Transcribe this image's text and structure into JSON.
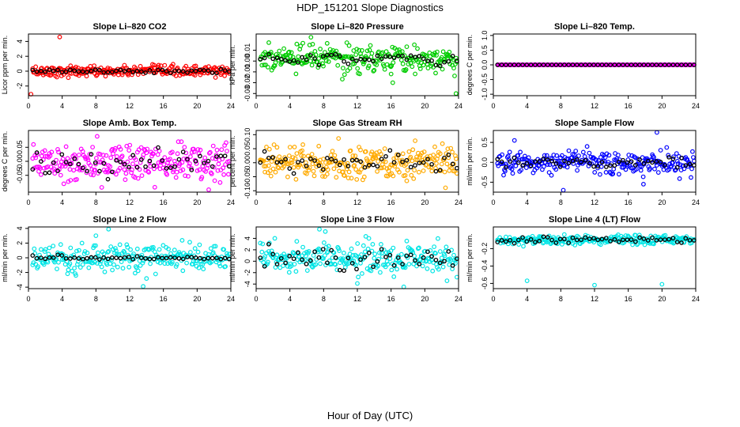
{
  "figure": {
    "title": "HDP_151201  Slope Diagnostics",
    "xlabel": "Hour of Day (UTC)"
  },
  "chart_data": [
    {
      "type": "scatter",
      "title": "Slope Li–820 CO2",
      "ylabel": "Licor ppm per min.",
      "xlim": [
        0,
        24
      ],
      "xticks": [
        "0",
        "4",
        "8",
        "12",
        "16",
        "20",
        "24"
      ],
      "ylim": [
        -3.3,
        5.0
      ],
      "yticks": [
        {
          "v": -2,
          "label": "-2"
        },
        {
          "v": 0,
          "label": "0"
        },
        {
          "v": 2,
          "label": "2"
        },
        {
          "v": 4,
          "label": "4"
        }
      ],
      "color": "#ff0000",
      "center": 0,
      "spread": 0.35,
      "outliers": [
        {
          "x": 3.7,
          "y": 4.6
        },
        {
          "x": 0.3,
          "y": -3.1
        }
      ],
      "mean_spread": 0.15
    },
    {
      "type": "scatter",
      "title": "Slope Li–820 Pressure",
      "ylabel": "kPa per min.",
      "xlim": [
        0,
        24
      ],
      "xticks": [
        "0",
        "4",
        "8",
        "12",
        "16",
        "20",
        "24"
      ],
      "ylim": [
        -0.032,
        0.025
      ],
      "yticks": [
        {
          "v": -0.03,
          "label": "-0.03"
        },
        {
          "v": -0.02,
          "label": "-0.02"
        },
        {
          "v": -0.01,
          "label": "-0.01"
        },
        {
          "v": 0.0,
          "label": "0.00"
        },
        {
          "v": 0.01,
          "label": "0.01"
        }
      ],
      "color": "#00cc00",
      "center": 0.002,
      "spread": 0.006,
      "outliers": [
        {
          "x": 6.5,
          "y": 0.022
        },
        {
          "x": 1.5,
          "y": 0.017
        },
        {
          "x": 16.2,
          "y": -0.02
        },
        {
          "x": 23.7,
          "y": -0.03
        },
        {
          "x": 16.0,
          "y": -0.012
        }
      ],
      "mean_spread": 0.003
    },
    {
      "type": "scatter",
      "title": "Slope Li–820 Temp.",
      "ylabel": "degrees C per min.",
      "xlim": [
        0,
        24
      ],
      "xticks": [
        "0",
        "4",
        "8",
        "12",
        "16",
        "20",
        "24"
      ],
      "ylim": [
        -1.05,
        1.05
      ],
      "yticks": [
        {
          "v": -1,
          "label": "-1.0"
        },
        {
          "v": -0.5,
          "label": "-0.5"
        },
        {
          "v": 0,
          "label": "0.0"
        },
        {
          "v": 0.5,
          "label": "0.5"
        },
        {
          "v": 1,
          "label": "1.0"
        }
      ],
      "color": "#ff00ff",
      "center": 0,
      "spread": 0.0,
      "outliers": [],
      "mean_spread": 0.0
    },
    {
      "type": "scatter",
      "title": "Slope Amb. Box Temp.",
      "ylabel": "degrees C per min.",
      "xlim": [
        0,
        24
      ],
      "xticks": [
        "0",
        "4",
        "8",
        "12",
        "16",
        "20",
        "24"
      ],
      "ylim": [
        -0.11,
        0.11
      ],
      "yticks": [
        {
          "v": -0.05,
          "label": "-0.05"
        },
        {
          "v": 0.0,
          "label": "0.00"
        },
        {
          "v": 0.05,
          "label": "0.05"
        }
      ],
      "color": "#ff00ff",
      "center": 0,
      "spread": 0.035,
      "outliers": [],
      "mean_spread": 0.02
    },
    {
      "type": "scatter",
      "title": "Slope Gas Stream RH",
      "ylabel": "percent per min.",
      "xlim": [
        0,
        24
      ],
      "xticks": [
        "0",
        "4",
        "8",
        "12",
        "16",
        "20",
        "24"
      ],
      "ylim": [
        -0.105,
        0.115
      ],
      "yticks": [
        {
          "v": -0.1,
          "label": "-0.10"
        },
        {
          "v": -0.05,
          "label": "-0.05"
        },
        {
          "v": 0.0,
          "label": "0.00"
        },
        {
          "v": 0.05,
          "label": "0.05"
        },
        {
          "v": 0.1,
          "label": "0.10"
        }
      ],
      "color": "#ffaa00",
      "center": 0,
      "spread": 0.03,
      "outliers": [],
      "mean_spread": 0.02
    },
    {
      "type": "scatter",
      "title": "Slope Sample Flow",
      "ylabel": "ml/min per min.",
      "xlim": [
        0,
        24
      ],
      "xticks": [
        "0",
        "4",
        "8",
        "12",
        "16",
        "20",
        "24"
      ],
      "ylim": [
        -0.75,
        0.8
      ],
      "yticks": [
        {
          "v": -0.5,
          "label": "-0.5"
        },
        {
          "v": 0.0,
          "label": "0.0"
        },
        {
          "v": 0.5,
          "label": "0.5"
        }
      ],
      "color": "#0000ff",
      "center": 0,
      "spread": 0.14,
      "outliers": [
        {
          "x": 8.3,
          "y": -0.7
        },
        {
          "x": 19.4,
          "y": 0.75
        },
        {
          "x": 2.5,
          "y": 0.55
        },
        {
          "x": 17.8,
          "y": -0.55
        }
      ],
      "mean_spread": 0.07
    },
    {
      "type": "scatter",
      "title": "Slope Line 2 Flow",
      "ylabel": "ml/min per min.",
      "xlim": [
        0,
        24
      ],
      "xticks": [
        "0",
        "4",
        "8",
        "12",
        "16",
        "20",
        "24"
      ],
      "ylim": [
        -4.2,
        4.2
      ],
      "yticks": [
        {
          "v": -4,
          "label": "-4"
        },
        {
          "v": -2,
          "label": "-2"
        },
        {
          "v": 0,
          "label": "0"
        },
        {
          "v": 2,
          "label": "2"
        },
        {
          "v": 4,
          "label": "4"
        }
      ],
      "color": "#00e5e5",
      "center": 0,
      "spread": 0.9,
      "outliers": [
        {
          "x": 9.5,
          "y": 3.9
        },
        {
          "x": 13.6,
          "y": -3.9
        },
        {
          "x": 8.0,
          "y": 3.0
        }
      ],
      "mean_spread": 0.15
    },
    {
      "type": "scatter",
      "title": "Slope Line 3 Flow",
      "ylabel": "ml/min per min.",
      "xlim": [
        0,
        24
      ],
      "xticks": [
        "0",
        "4",
        "8",
        "12",
        "16",
        "20",
        "24"
      ],
      "ylim": [
        -4.8,
        6.0
      ],
      "yticks": [
        {
          "v": -4,
          "label": "-4"
        },
        {
          "v": -2,
          "label": "-2"
        },
        {
          "v": 0,
          "label": "0"
        },
        {
          "v": 2,
          "label": "2"
        },
        {
          "v": 4,
          "label": "4"
        }
      ],
      "color": "#00e5e5",
      "center": 0.5,
      "spread": 1.3,
      "outliers": [
        {
          "x": 7.5,
          "y": 5.6
        },
        {
          "x": 8.2,
          "y": 5.2
        },
        {
          "x": 17.5,
          "y": -4.5
        },
        {
          "x": 12.0,
          "y": -3.9
        }
      ],
      "mean_spread": 1.0
    },
    {
      "type": "scatter",
      "title": "Slope Line 4 (LT) Flow",
      "ylabel": "ml/min per min.",
      "xlim": [
        0,
        24
      ],
      "xticks": [
        "0",
        "4",
        "8",
        "12",
        "16",
        "20",
        "24"
      ],
      "ylim": [
        -0.66,
        0.05
      ],
      "yticks": [
        {
          "v": -0.6,
          "label": "-0.6"
        },
        {
          "v": -0.4,
          "label": "-0.4"
        },
        {
          "v": -0.2,
          "label": "-0.2"
        }
      ],
      "color": "#00e5e5",
      "center": -0.1,
      "spread": 0.025,
      "outliers": [
        {
          "x": 4.0,
          "y": -0.57
        },
        {
          "x": 12.0,
          "y": -0.62
        },
        {
          "x": 20.0,
          "y": -0.61
        }
      ],
      "mean_spread": 0.02
    }
  ]
}
